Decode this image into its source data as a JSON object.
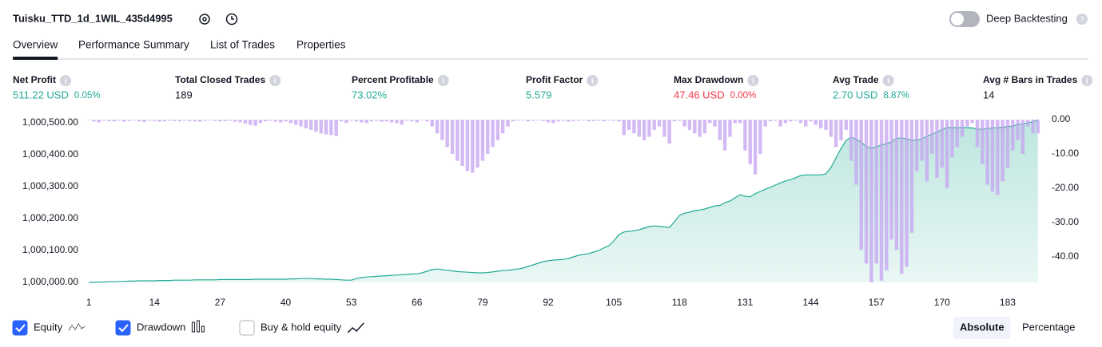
{
  "header": {
    "title": "Tuisku_TTD_1d_1WIL_435d4995",
    "deep_backtesting": "Deep Backtesting",
    "deep_backtesting_on": false
  },
  "tabs": {
    "items": [
      "Overview",
      "Performance Summary",
      "List of Trades",
      "Properties"
    ],
    "active": 0
  },
  "metrics": [
    {
      "label": "Net Profit",
      "value": "511.22 USD",
      "change": "0.05%",
      "tone": "positive"
    },
    {
      "label": "Total Closed Trades",
      "value": "189",
      "tone": "neutral"
    },
    {
      "label": "Percent Profitable",
      "value": "73.02%",
      "tone": "positive"
    },
    {
      "label": "Profit Factor",
      "value": "5.579",
      "tone": "positive"
    },
    {
      "label": "Max Drawdown",
      "value": "47.46 USD",
      "change": "0.00%",
      "tone": "negative"
    },
    {
      "label": "Avg Trade",
      "value": "2.70 USD",
      "change": "8.87%",
      "tone": "positive"
    },
    {
      "label": "Avg # Bars in Trades",
      "value": "14",
      "tone": "neutral"
    }
  ],
  "chart_data": {
    "type": "line",
    "x": [
      1,
      2,
      3,
      4,
      5,
      6,
      7,
      8,
      9,
      10,
      11,
      12,
      13,
      14,
      15,
      16,
      17,
      18,
      19,
      20,
      21,
      22,
      23,
      24,
      25,
      26,
      27,
      28,
      29,
      30,
      31,
      32,
      33,
      34,
      35,
      36,
      37,
      38,
      39,
      40,
      41,
      42,
      43,
      44,
      45,
      46,
      47,
      48,
      49,
      50,
      51,
      52,
      53,
      54,
      55,
      56,
      57,
      58,
      59,
      60,
      61,
      62,
      63,
      64,
      65,
      66,
      67,
      68,
      69,
      70,
      71,
      72,
      73,
      74,
      75,
      76,
      77,
      78,
      79,
      80,
      81,
      82,
      83,
      84,
      85,
      86,
      87,
      88,
      89,
      90,
      91,
      92,
      93,
      94,
      95,
      96,
      97,
      98,
      99,
      100,
      101,
      102,
      103,
      104,
      105,
      106,
      107,
      108,
      109,
      110,
      111,
      112,
      113,
      114,
      115,
      116,
      117,
      118,
      119,
      120,
      121,
      122,
      123,
      124,
      125,
      126,
      127,
      128,
      129,
      130,
      131,
      132,
      133,
      134,
      135,
      136,
      137,
      138,
      139,
      140,
      141,
      142,
      143,
      144,
      145,
      146,
      147,
      148,
      149,
      150,
      151,
      152,
      153,
      154,
      155,
      156,
      157,
      158,
      159,
      160,
      161,
      162,
      163,
      164,
      165,
      166,
      167,
      168,
      169,
      170,
      171,
      172,
      173,
      174,
      175,
      176,
      177,
      178,
      179,
      180,
      181,
      182,
      183,
      184,
      185,
      186,
      187,
      188,
      189
    ],
    "xlim": [
      0.5,
      189.5
    ],
    "xticks": [
      1,
      14,
      27,
      40,
      53,
      66,
      79,
      92,
      105,
      118,
      131,
      144,
      157,
      170,
      183
    ],
    "ylim": [
      1000000,
      1000510
    ],
    "yticks": [
      {
        "value": 1000000,
        "label": "1,000,000.00"
      },
      {
        "value": 1000100,
        "label": "1,000,100.00"
      },
      {
        "value": 1000200,
        "label": "1,000,200.00"
      },
      {
        "value": 1000300,
        "label": "1,000,300.00"
      },
      {
        "value": 1000400,
        "label": "1,000,400.00"
      },
      {
        "value": 1000500,
        "label": "1,000,500.00"
      }
    ],
    "y2lim": [
      -47.5,
      0
    ],
    "y2ticks": [
      {
        "value": 0,
        "label": "0.00"
      },
      {
        "value": -10,
        "label": "-10.00"
      },
      {
        "value": -20,
        "label": "-20.00"
      },
      {
        "value": -30,
        "label": "-30.00"
      },
      {
        "value": -40,
        "label": "-40.00"
      }
    ],
    "series": [
      {
        "name": "Equity",
        "kind": "area",
        "color": "#22ab94",
        "visible": true,
        "values": [
          1000000,
          1000000,
          1000001,
          1000001,
          1000002,
          1000002,
          1000003,
          1000003,
          1000004,
          1000004,
          1000005,
          1000005,
          1000005,
          1000005,
          1000006,
          1000006,
          1000006,
          1000007,
          1000007,
          1000007,
          1000007,
          1000008,
          1000008,
          1000008,
          1000008,
          1000008,
          1000009,
          1000009,
          1000009,
          1000009,
          1000009,
          1000009,
          1000009,
          1000010,
          1000010,
          1000010,
          1000010,
          1000010,
          1000010,
          1000010,
          1000011,
          1000011,
          1000012,
          1000012,
          1000012,
          1000011,
          1000011,
          1000010,
          1000010,
          1000009,
          1000008,
          1000007,
          1000007,
          1000012,
          1000015,
          1000017,
          1000018,
          1000019,
          1000020,
          1000021,
          1000022,
          1000023,
          1000024,
          1000025,
          1000026,
          1000027,
          1000030,
          1000035,
          1000040,
          1000042,
          1000040,
          1000038,
          1000036,
          1000034,
          1000033,
          1000032,
          1000031,
          1000030,
          1000030,
          1000031,
          1000033,
          1000035,
          1000037,
          1000038,
          1000040,
          1000042,
          1000045,
          1000050,
          1000055,
          1000060,
          1000065,
          1000068,
          1000070,
          1000071,
          1000072,
          1000075,
          1000080,
          1000085,
          1000088,
          1000090,
          1000095,
          1000100,
          1000108,
          1000115,
          1000130,
          1000150,
          1000158,
          1000160,
          1000162,
          1000165,
          1000170,
          1000175,
          1000177,
          1000176,
          1000174,
          1000172,
          1000190,
          1000210,
          1000217,
          1000220,
          1000225,
          1000227,
          1000230,
          1000235,
          1000240,
          1000241,
          1000250,
          1000255,
          1000265,
          1000275,
          1000270,
          1000268,
          1000278,
          1000285,
          1000292,
          1000298,
          1000305,
          1000312,
          1000318,
          1000322,
          1000328,
          1000335,
          1000337,
          1000337,
          1000337,
          1000337,
          1000340,
          1000360,
          1000390,
          1000420,
          1000445,
          1000455,
          1000448,
          1000440,
          1000425,
          1000420,
          1000425,
          1000430,
          1000435,
          1000440,
          1000452,
          1000452,
          1000450,
          1000445,
          1000445,
          1000450,
          1000458,
          1000465,
          1000470,
          1000480,
          1000485,
          1000485,
          1000485,
          1000485,
          1000485,
          1000484,
          1000480,
          1000480,
          1000482,
          1000484,
          1000485,
          1000486,
          1000488,
          1000490,
          1000495,
          1000497,
          1000500,
          1000503,
          1000510
        ]
      },
      {
        "name": "Drawdown",
        "kind": "bar",
        "axis": "y2",
        "color": "#c5a3f2",
        "visible": true,
        "values": [
          0,
          -0.5,
          -0.8,
          -0.3,
          -0.5,
          -0.5,
          -0.3,
          -0.6,
          -0.4,
          -0.2,
          -0.5,
          -0.7,
          -0.3,
          -0.4,
          -0.6,
          -0.5,
          -0.3,
          -0.4,
          -0.5,
          -0.3,
          -0.4,
          -0.5,
          -0.6,
          -0.3,
          -0.2,
          -0.4,
          -0.5,
          -0.4,
          -0.3,
          -0.6,
          -0.8,
          -1.2,
          -1.5,
          -1.8,
          -1,
          -0.5,
          -0.3,
          -0.6,
          -0.8,
          -0.5,
          -1,
          -1.5,
          -2,
          -2.5,
          -3,
          -3.5,
          -4,
          -4.3,
          -4.5,
          -4.8,
          -0.5,
          -1,
          -0.3,
          -0.5,
          -0.8,
          -1,
          -0.5,
          -0.3,
          -0.6,
          -0.5,
          -0.8,
          -1,
          -1.5,
          -0.3,
          -0.5,
          -0.8,
          0,
          -0.5,
          -2,
          -4,
          -6,
          -8,
          -10,
          -12,
          -13.5,
          -15,
          -15.5,
          -14,
          -12,
          -10,
          -8,
          -6,
          -4,
          -2,
          -0.5,
          -0.3,
          -0.2,
          -0.5,
          -0.3,
          -0.2,
          -0.4,
          -0.8,
          -1,
          -0.5,
          -0.3,
          -0.6,
          -0.4,
          -0.3,
          -0.2,
          -0.5,
          -0.4,
          -0.3,
          -0.5,
          -0.2,
          -0.3,
          -0.5,
          -4.5,
          -3,
          -4,
          -5,
          -6,
          -5,
          -3,
          -2,
          -5,
          -7,
          -0.5,
          -0.3,
          -2,
          -3,
          -4,
          -5,
          -4,
          -1,
          -2,
          -6,
          -9,
          -5,
          -1,
          -1,
          -9,
          -13,
          -16,
          -10,
          -2,
          -0.5,
          -0.3,
          -2,
          -1,
          -0.5,
          -0.3,
          -1,
          -2,
          -0.5,
          -1.5,
          -2.5,
          -3,
          -5,
          -8,
          -6,
          -3,
          -12,
          -19,
          -38,
          -42,
          -47.46,
          -42,
          -47,
          -44,
          -35,
          -38,
          -45,
          -43,
          -33,
          -15,
          -12,
          -18,
          -10,
          -17,
          -14,
          -20,
          -11,
          -8,
          -5,
          -2,
          -1,
          -8,
          -13,
          -19,
          -21,
          -22,
          -18,
          -14,
          -9,
          -6,
          -10,
          -2,
          -4,
          -4
        ]
      },
      {
        "name": "Buy & hold equity",
        "kind": "line",
        "visible": false
      }
    ],
    "scale_options": [
      "Absolute",
      "Percentage"
    ],
    "scale": 0
  }
}
